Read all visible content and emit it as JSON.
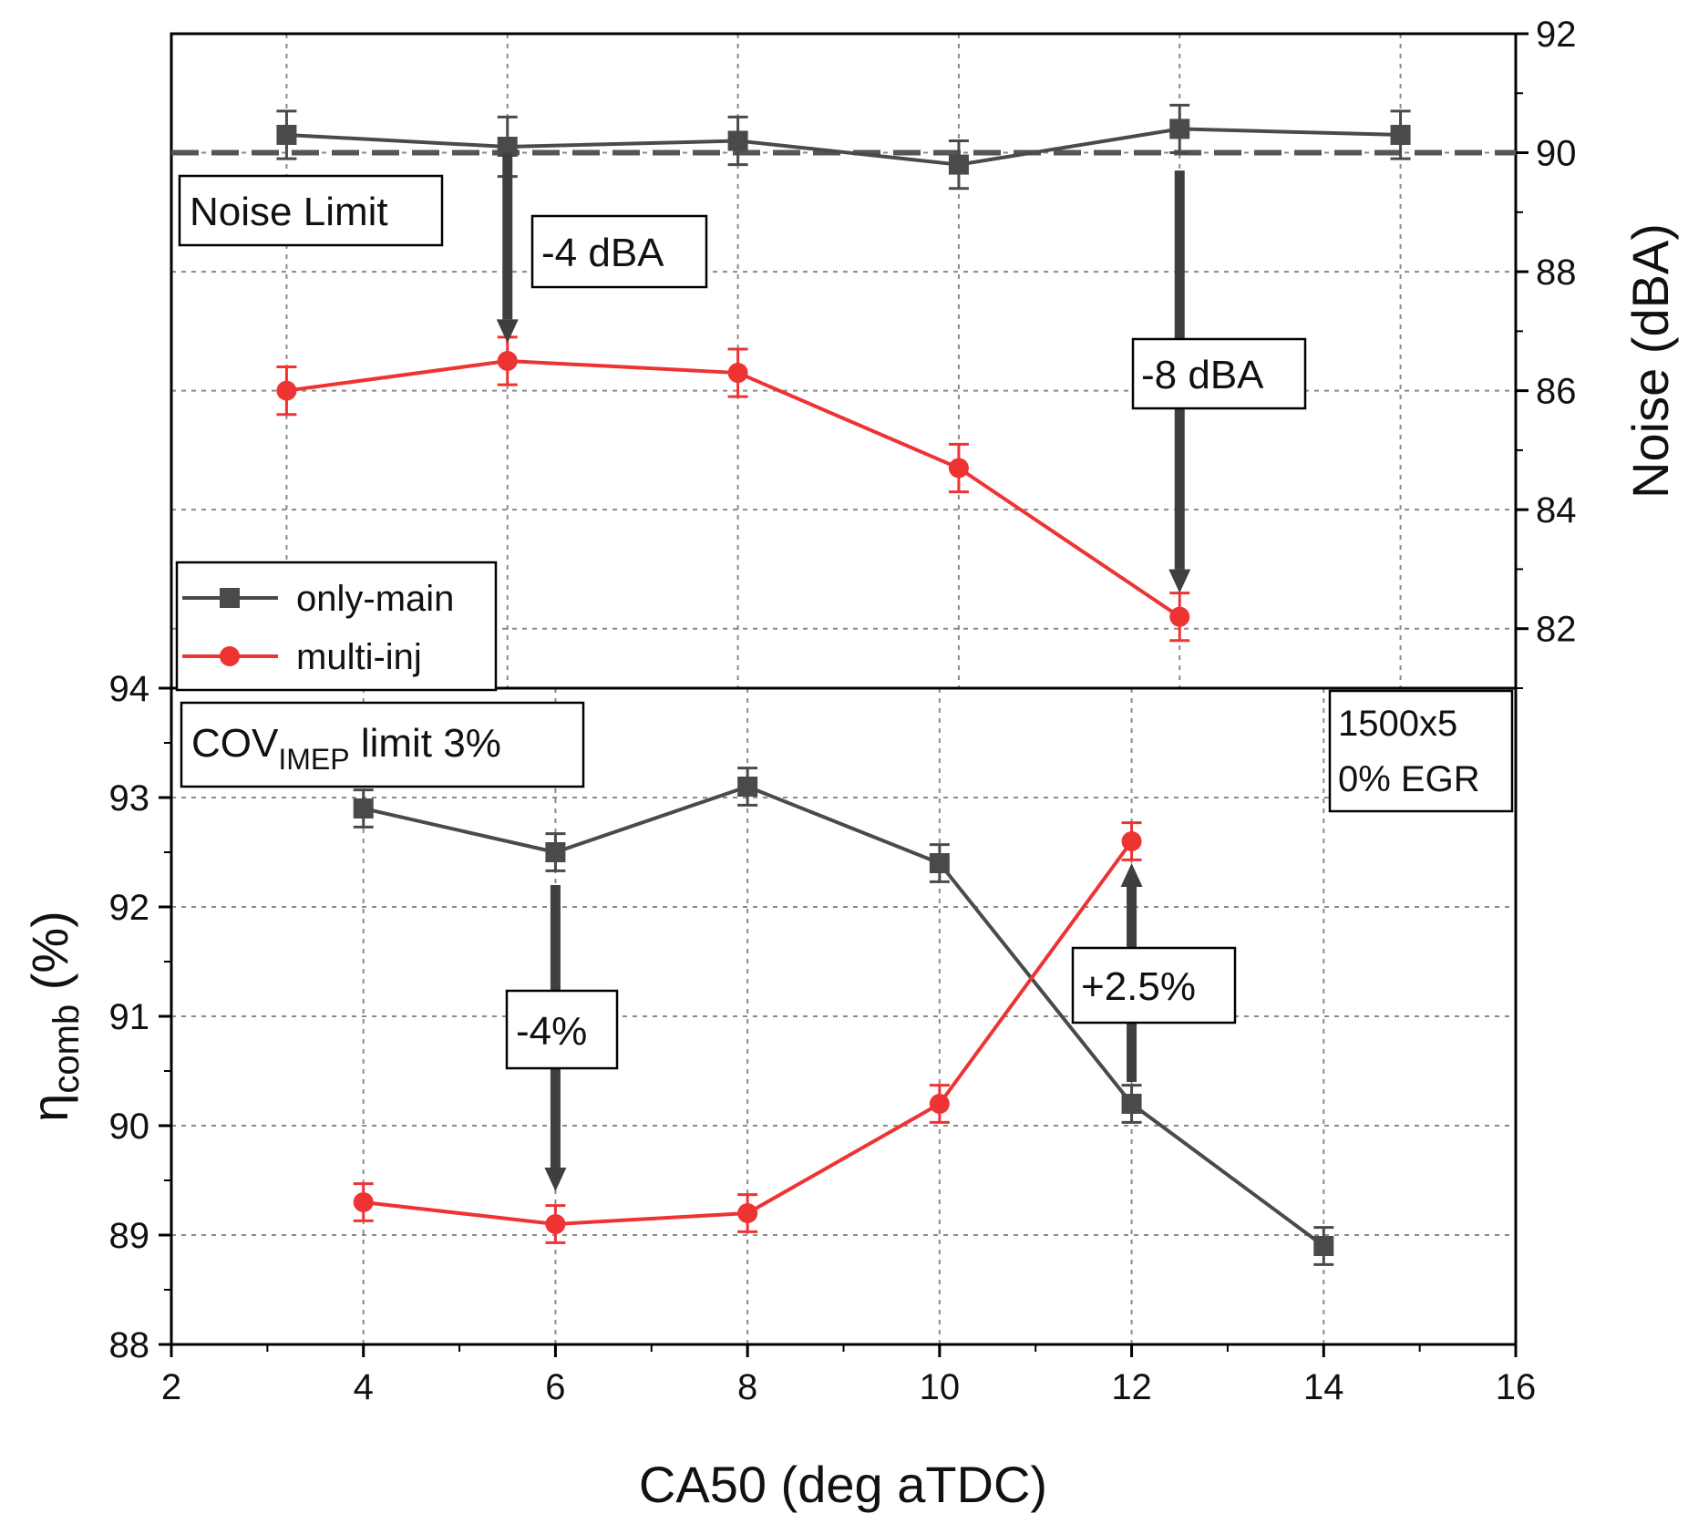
{
  "colors": {
    "only_main": "#4a4a4a",
    "multi_inj": "#ee3333",
    "limit_line": "#555555",
    "arrow": "#3f3f3f",
    "grid": "#8a8a8a",
    "axis": "#000000"
  },
  "chart_data": [
    {
      "panel": "top",
      "type": "line",
      "xlabel": "CA50 (deg aTDC)",
      "xlim": [
        2,
        16
      ],
      "ylabel": "Noise (dBA)",
      "ylim": [
        81,
        92
      ],
      "yaxis_side": "right",
      "yticks": [
        82,
        84,
        86,
        88,
        90,
        92
      ],
      "grid": true,
      "series": [
        {
          "name": "only-main",
          "color_key": "only_main",
          "marker": "square",
          "x": [
            3.2,
            5.5,
            7.9,
            10.2,
            12.5,
            14.8
          ],
          "y": [
            90.3,
            90.1,
            90.2,
            89.8,
            90.4,
            90.3
          ],
          "err": [
            0.4,
            0.5,
            0.4,
            0.4,
            0.4,
            0.4
          ]
        },
        {
          "name": "multi-inj",
          "color_key": "multi_inj",
          "marker": "circle",
          "x": [
            3.2,
            5.5,
            7.9,
            10.2,
            12.5
          ],
          "y": [
            86.0,
            86.5,
            86.3,
            84.7,
            82.2
          ],
          "err": [
            0.4,
            0.4,
            0.4,
            0.4,
            0.4
          ]
        }
      ],
      "reference_line": {
        "y": 90,
        "style": "dashed",
        "label": "Noise Limit"
      },
      "annotations": [
        {
          "text": "-4 dBA",
          "arrow_x": 5.5,
          "from_y": 90.0,
          "to_y": 86.8
        },
        {
          "text": "-8 dBA",
          "arrow_x": 12.5,
          "from_y": 89.7,
          "to_y": 82.6
        }
      ]
    },
    {
      "panel": "bottom",
      "type": "line",
      "xlabel": "CA50 (deg aTDC)",
      "xlim": [
        2,
        16
      ],
      "xticks": [
        2,
        4,
        6,
        8,
        10,
        12,
        14,
        16
      ],
      "ylabel_main": "η",
      "ylabel_sub": "comb",
      "ylabel_suffix": " (%)",
      "ylim": [
        88,
        94
      ],
      "yaxis_side": "left",
      "yticks": [
        88,
        89,
        90,
        91,
        92,
        93,
        94
      ],
      "grid": true,
      "series": [
        {
          "name": "only-main",
          "color_key": "only_main",
          "marker": "square",
          "x": [
            4,
            6,
            8,
            10,
            12,
            14
          ],
          "y": [
            92.9,
            92.5,
            93.1,
            92.4,
            90.2,
            88.9
          ],
          "err": [
            0.17,
            0.17,
            0.17,
            0.17,
            0.17,
            0.17
          ]
        },
        {
          "name": "multi-inj",
          "color_key": "multi_inj",
          "marker": "circle",
          "x": [
            4,
            6,
            8,
            10,
            12
          ],
          "y": [
            89.3,
            89.1,
            89.2,
            90.2,
            92.6
          ],
          "err": [
            0.17,
            0.17,
            0.17,
            0.17,
            0.17
          ]
        }
      ],
      "limit_label": {
        "main": "COV",
        "sub": "IMEP",
        "suffix": " limit 3%"
      },
      "condition_label": [
        "1500x5",
        "0% EGR"
      ],
      "annotations": [
        {
          "text": "-4%",
          "arrow_x": 6,
          "from_y": 92.2,
          "to_y": 89.4
        },
        {
          "text": "+2.5%",
          "arrow_x": 12,
          "from_y": 90.4,
          "to_y": 92.4
        }
      ]
    }
  ],
  "legend": {
    "entries": [
      {
        "label": "only-main",
        "color_key": "only_main",
        "marker": "square"
      },
      {
        "label": "multi-inj",
        "color_key": "multi_inj",
        "marker": "circle"
      }
    ]
  }
}
